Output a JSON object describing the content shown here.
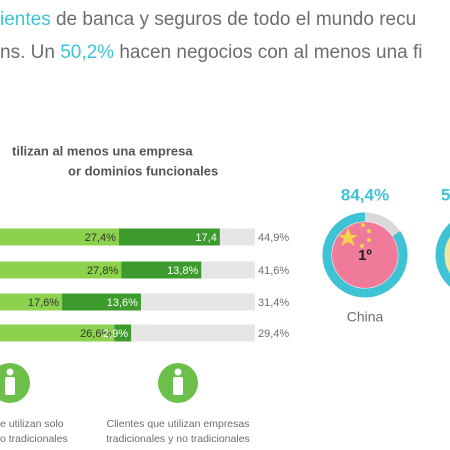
{
  "header": {
    "lines": [
      [
        {
          "text": "ientes",
          "accent": true
        },
        {
          "text": " de banca y seguros de todo el mundo recu",
          "accent": false
        }
      ],
      [
        {
          "text": "ns. Un ",
          "accent": false
        },
        {
          "text": "50,2%",
          "accent": true
        },
        {
          "text": " hacen negocios con al menos una fi",
          "accent": false
        }
      ]
    ]
  },
  "chart_data": [
    {
      "type": "bar",
      "stacked": true,
      "orientation": "horizontal",
      "title": [
        "tilizan al menos una empresa",
        "or dominios funcionales"
      ],
      "categories": [
        null,
        null,
        null,
        null
      ],
      "track_color": "#e6e6e6",
      "series": [
        {
          "name": [
            "e utilizan solo",
            "o tradicionales"
          ],
          "color": "#8cd24c",
          "values": [
            27.4,
            27.8,
            17.6,
            26.6
          ],
          "value_labels": [
            "27,4%",
            "27,8%",
            "17,6%",
            "26,6%"
          ]
        },
        {
          "name": [
            "Clientes que utilizan empresas",
            "tradicionales y no tradicionales"
          ],
          "color": "#3d9b2d",
          "values": [
            17.4,
            13.8,
            13.6,
            2.9
          ],
          "value_labels": [
            "17,4",
            "13,8%",
            "13,6%",
            "2,9%"
          ]
        }
      ],
      "totals": {
        "values": [
          44.9,
          41.6,
          31.4,
          29.4
        ],
        "value_labels": [
          "44,9%",
          "41,6%",
          "31,4%",
          "29,4%"
        ]
      },
      "legend_color": "#6cc04a"
    },
    {
      "type": "donut",
      "categories": [
        "China"
      ],
      "values": [
        84.4
      ],
      "value_labels": [
        "84,4%"
      ],
      "ranks": [
        "1º"
      ],
      "color": "#3ec3d5",
      "track_color": "#d9d9d9",
      "fill_color": "#f07a9a",
      "next_label": "5"
    }
  ]
}
